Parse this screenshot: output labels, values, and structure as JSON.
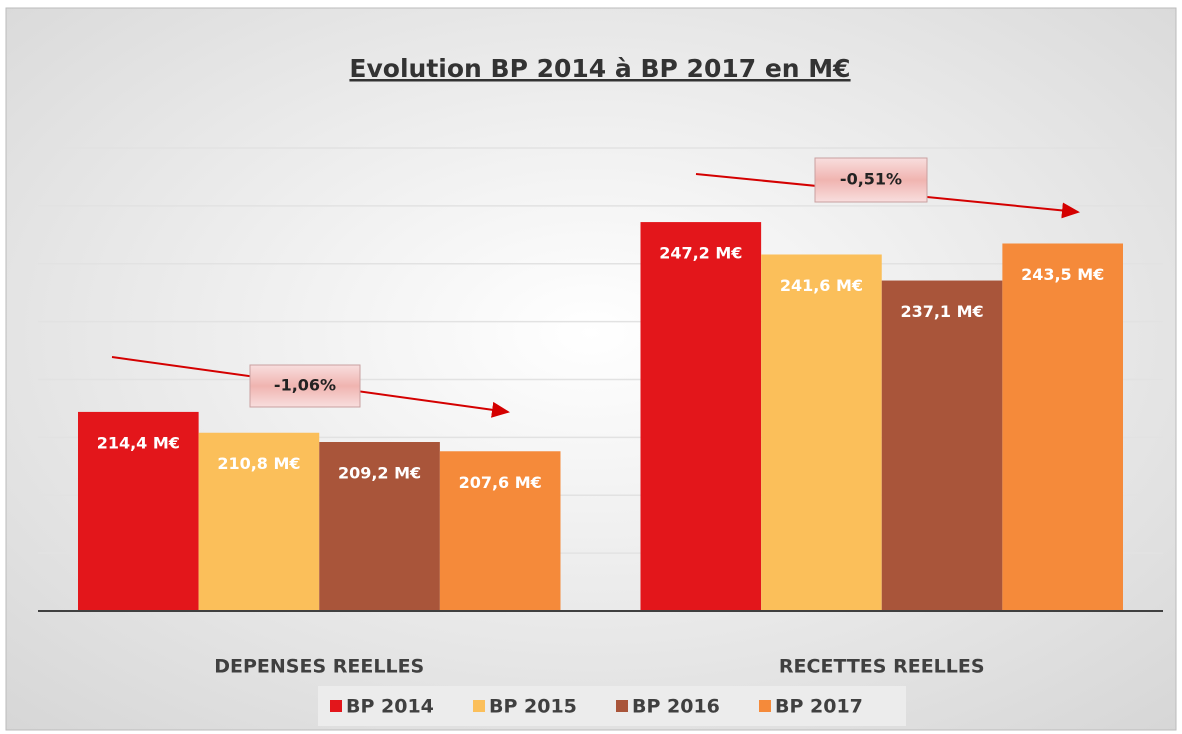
{
  "chart_data": {
    "type": "bar",
    "title": "Evolution BP 2014 à BP 2017 en M€",
    "categories": [
      "DEPENSES REELLES",
      "RECETTES REELLES"
    ],
    "series": [
      {
        "name": "BP 2014",
        "color": "#e3161b",
        "values": [
          214.4,
          247.2
        ],
        "value_labels": [
          "214,4 M€",
          "247,2 M€"
        ]
      },
      {
        "name": "BP 2015",
        "color": "#fbbf5a",
        "values": [
          210.8,
          241.6
        ],
        "value_labels": [
          "210,8 M€",
          "241,6 M€"
        ]
      },
      {
        "name": "BP 2016",
        "color": "#a9553a",
        "values": [
          209.2,
          237.1
        ],
        "value_labels": [
          "209,2 M€",
          "237,1 M€"
        ]
      },
      {
        "name": "BP 2017",
        "color": "#f58a3a",
        "values": [
          207.6,
          243.5
        ],
        "value_labels": [
          "207,6 M€",
          "243,5 M€"
        ]
      }
    ],
    "ylim": [
      180,
      260
    ],
    "yticks": [
      180,
      190,
      200,
      210,
      220,
      230,
      240,
      250,
      260
    ],
    "grid": true,
    "legend": "bottom",
    "annotations": [
      {
        "text": "-1,06%"
      },
      {
        "text": "-0,51%"
      }
    ]
  }
}
